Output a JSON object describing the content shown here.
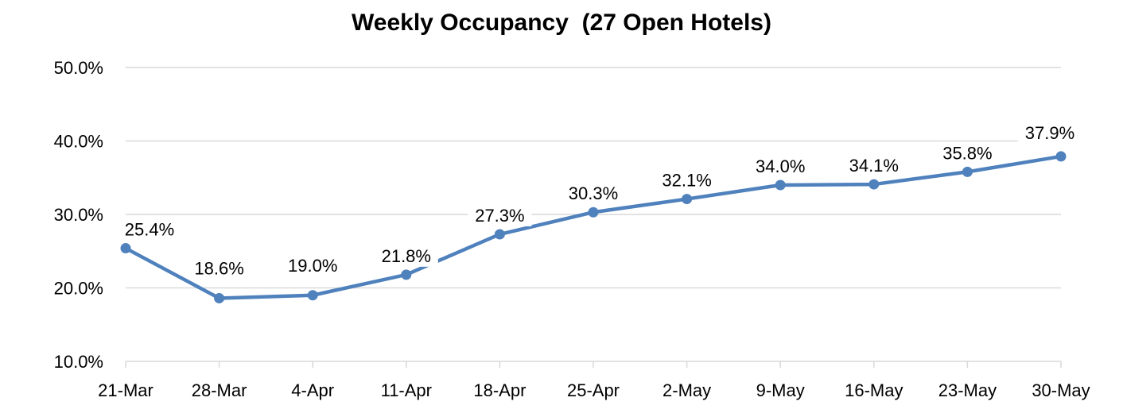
{
  "chart_data": {
    "type": "line",
    "title": "Weekly Occupancy  (27 Open Hotels)",
    "xlabel": "",
    "ylabel": "",
    "categories": [
      "21-Mar",
      "28-Mar",
      "4-Apr",
      "11-Apr",
      "18-Apr",
      "25-Apr",
      "2-May",
      "9-May",
      "16-May",
      "23-May",
      "30-May"
    ],
    "series": [
      {
        "values": [
          25.4,
          18.6,
          19.0,
          21.8,
          27.3,
          30.3,
          32.1,
          34.0,
          34.1,
          35.8,
          37.9
        ],
        "labels": [
          "25.4%",
          "18.6%",
          "19.0%",
          "21.8%",
          "27.3%",
          "30.3%",
          "32.1%",
          "34.0%",
          "34.1%",
          "35.8%",
          "37.9%"
        ],
        "color": "#4F81BD"
      }
    ],
    "ylim": [
      10,
      50
    ],
    "yticks": [
      10,
      20,
      30,
      40,
      50
    ],
    "ytick_labels": [
      "10.0%",
      "20.0%",
      "30.0%",
      "40.0%",
      "50.0%"
    ],
    "grid": true,
    "grid_color": "#D9D9D9",
    "legend": "none"
  }
}
